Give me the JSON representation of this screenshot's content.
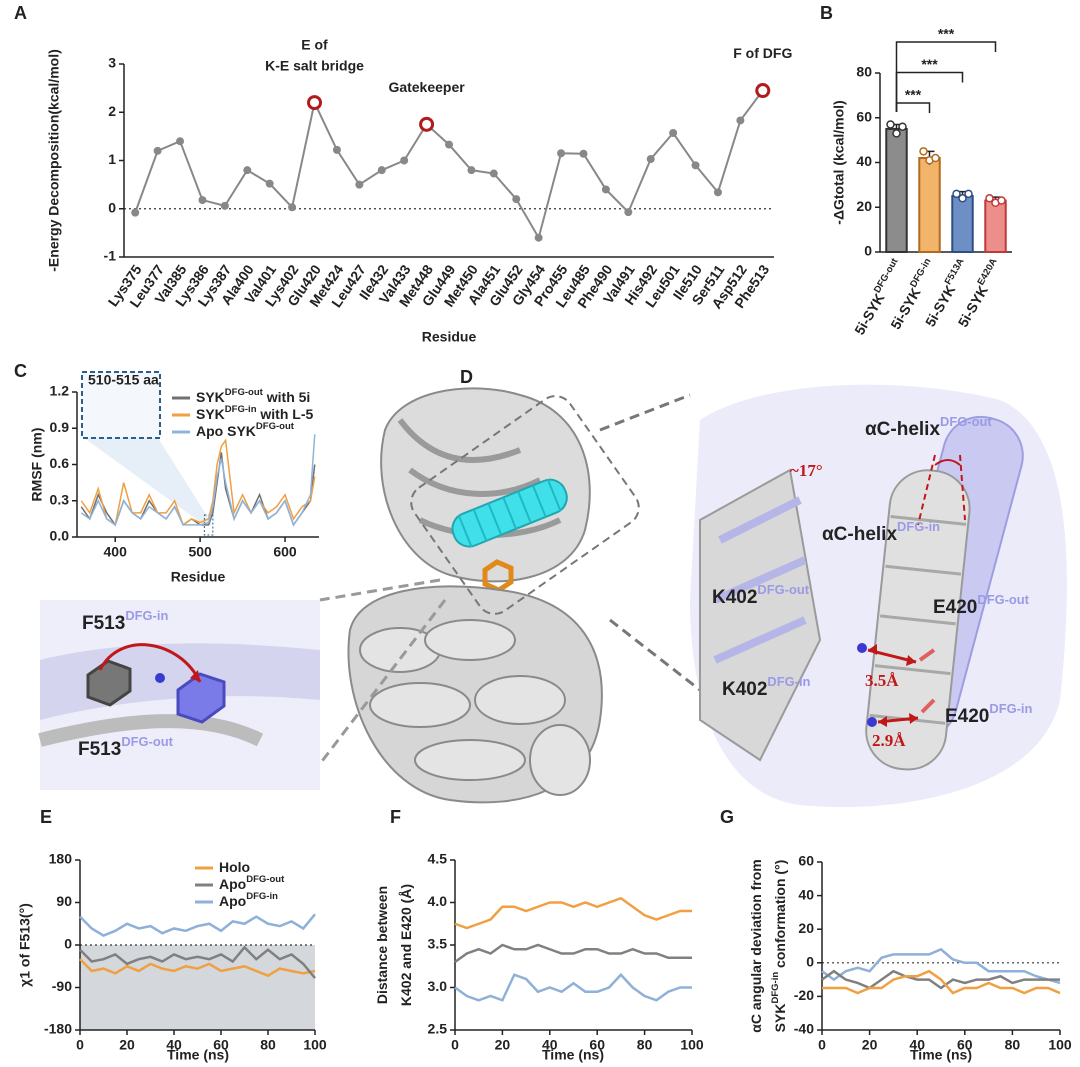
{
  "chart_data": [
    {
      "panel": "A",
      "type": "line",
      "categories": [
        "Lys375",
        "Leu377",
        "Val385",
        "Lys386",
        "Lys387",
        "Ala400",
        "Val401",
        "Lys402",
        "Glu420",
        "Met424",
        "Leu427",
        "Ile432",
        "Val433",
        "Met448",
        "Glu449",
        "Met450",
        "Ala451",
        "Glu452",
        "Gly454",
        "Pro455",
        "Leu485",
        "Phe490",
        "Val491",
        "His492",
        "Leu501",
        "Ile510",
        "Ser511",
        "Asp512",
        "Phe513"
      ],
      "values": [
        -0.08,
        1.2,
        1.4,
        0.18,
        0.06,
        0.8,
        0.52,
        0.03,
        2.2,
        1.22,
        0.5,
        0.8,
        1.0,
        1.75,
        1.33,
        0.8,
        0.73,
        0.2,
        -0.6,
        1.15,
        1.14,
        0.4,
        -0.07,
        1.03,
        1.57,
        0.9,
        0.34,
        1.83,
        2.45
      ],
      "color": "#888888",
      "highlight_color": "#b01c1c",
      "ylim": [
        -1,
        3
      ],
      "yticks": [
        -1,
        0,
        1,
        2,
        3
      ],
      "hline": 0,
      "ylabel": "-Energy Decomposition(kcal/mol)",
      "xlabel": "Residue",
      "annotations": [
        {
          "text": [
            "E of",
            "K-E salt bridge"
          ],
          "category": "Glu420"
        },
        {
          "text": [
            "Gatekeeper"
          ],
          "category": "Met448"
        },
        {
          "text": [
            "F of DFG"
          ],
          "category": "Phe513"
        }
      ]
    },
    {
      "panel": "B",
      "type": "bar",
      "categories": [
        [
          "5i-SYK",
          {
            "sup": "DFG-out"
          }
        ],
        [
          "5i-SYK",
          {
            "sup": "DFG-in"
          }
        ],
        [
          "5i-SYK",
          {
            "sup": "F513A"
          }
        ],
        [
          "5i-SYK",
          {
            "sup": "E420A"
          }
        ]
      ],
      "values": [
        55,
        42,
        25,
        23
      ],
      "errors": [
        2,
        3,
        2,
        1.5
      ],
      "points": [
        [
          57,
          53,
          56
        ],
        [
          45,
          41,
          42
        ],
        [
          26,
          24,
          26
        ],
        [
          24,
          22,
          23
        ]
      ],
      "colors": [
        "#8c8c8c",
        "#f2b36b",
        "#6d8fc4",
        "#ec8f8a"
      ],
      "edge_colors": [
        "#333333",
        "#b46a1e",
        "#2d4e85",
        "#c0393a"
      ],
      "ylim": [
        0,
        80
      ],
      "yticks": [
        0,
        20,
        40,
        60,
        80
      ],
      "ylabel": "-ΔGtotal (kcal/mol)",
      "significance": [
        {
          "from": 0,
          "to": 1,
          "label": "***"
        },
        {
          "from": 0,
          "to": 2,
          "label": "***"
        },
        {
          "from": 0,
          "to": 3,
          "label": "***"
        }
      ]
    },
    {
      "panel": "C",
      "type": "line",
      "x": [
        360,
        370,
        380,
        390,
        400,
        410,
        420,
        430,
        440,
        450,
        460,
        470,
        480,
        490,
        500,
        510,
        515,
        520,
        525,
        530,
        540,
        550,
        560,
        570,
        580,
        590,
        600,
        610,
        620,
        630,
        635
      ],
      "series": [
        {
          "name": [
            "SYK",
            {
              "sup": "DFG-out"
            },
            " with 5i"
          ],
          "color": "#707070",
          "values": [
            0.25,
            0.15,
            0.35,
            0.2,
            0.1,
            0.3,
            0.2,
            0.15,
            0.3,
            0.2,
            0.15,
            0.25,
            0.1,
            0.15,
            0.1,
            0.1,
            0.2,
            0.45,
            0.7,
            0.4,
            0.15,
            0.3,
            0.2,
            0.35,
            0.15,
            0.2,
            0.3,
            0.1,
            0.2,
            0.3,
            0.6
          ]
        },
        {
          "name": [
            "SYK",
            {
              "sup": "DFG-in"
            },
            " with L-5"
          ],
          "color": "#f0a040",
          "values": [
            0.3,
            0.2,
            0.4,
            0.15,
            0.1,
            0.45,
            0.2,
            0.2,
            0.35,
            0.2,
            0.2,
            0.3,
            0.1,
            0.15,
            0.12,
            0.15,
            0.3,
            0.6,
            0.75,
            0.8,
            0.2,
            0.35,
            0.2,
            0.3,
            0.2,
            0.25,
            0.35,
            0.15,
            0.25,
            0.3,
            0.5
          ]
        },
        {
          "name": [
            "Apo SYK",
            {
              "sup": "DFG-out"
            }
          ],
          "color": "#8fb4dc",
          "values": [
            0.2,
            0.15,
            0.3,
            0.15,
            0.1,
            0.3,
            0.2,
            0.15,
            0.25,
            0.2,
            0.15,
            0.25,
            0.1,
            0.1,
            0.1,
            0.12,
            0.25,
            0.5,
            0.65,
            0.45,
            0.15,
            0.3,
            0.2,
            0.3,
            0.15,
            0.2,
            0.3,
            0.1,
            0.2,
            0.35,
            0.85
          ]
        }
      ],
      "xlim": [
        355,
        640
      ],
      "xticks": [
        400,
        500,
        600
      ],
      "ylim": [
        0,
        1.2
      ],
      "yticks": [
        {
          "value": 0,
          "label": "0.0"
        },
        0.3,
        0.6,
        0.9,
        1.2
      ],
      "xlabel": "Residue",
      "ylabel": "RMSF (nm)",
      "inset_label": "510-515 aa"
    },
    {
      "panel": "E",
      "type": "line",
      "x": [
        0,
        5,
        10,
        15,
        20,
        25,
        30,
        35,
        40,
        45,
        50,
        55,
        60,
        65,
        70,
        75,
        80,
        85,
        90,
        95,
        100
      ],
      "series": [
        {
          "name": [
            "Holo"
          ],
          "color": "#f0a040",
          "values": [
            -30,
            -55,
            -50,
            -60,
            -45,
            -55,
            -40,
            -50,
            -55,
            -45,
            -50,
            -40,
            -55,
            -50,
            -45,
            -55,
            -65,
            -50,
            -55,
            -60,
            -55
          ]
        },
        {
          "name": [
            "Apo",
            {
              "sup": "DFG-out"
            }
          ],
          "color": "#808080",
          "values": [
            -10,
            -35,
            -30,
            -20,
            -40,
            -30,
            -25,
            -35,
            -20,
            -30,
            -25,
            -30,
            -20,
            -35,
            -5,
            -30,
            -10,
            -30,
            -20,
            -40,
            -70
          ]
        },
        {
          "name": [
            "Apo",
            {
              "sup": "DFG-in"
            }
          ],
          "color": "#8fb0d8",
          "values": [
            60,
            35,
            20,
            30,
            45,
            35,
            40,
            25,
            35,
            30,
            40,
            45,
            30,
            50,
            45,
            60,
            45,
            40,
            50,
            35,
            65
          ]
        }
      ],
      "xlim": [
        0,
        100
      ],
      "xticks": [
        0,
        20,
        40,
        60,
        80,
        100
      ],
      "ylim": [
        -180,
        180
      ],
      "yticks": [
        -180,
        -90,
        0,
        90,
        180
      ],
      "hline": 0,
      "shade_below": 0,
      "shade_color": "#d4d8dc",
      "xlabel": "Time (ns)",
      "ylabel": "χ1 of F513(°)"
    },
    {
      "panel": "F",
      "type": "line",
      "x": [
        0,
        5,
        10,
        15,
        20,
        25,
        30,
        35,
        40,
        45,
        50,
        55,
        60,
        65,
        70,
        75,
        80,
        85,
        90,
        95,
        100
      ],
      "series": [
        {
          "color": "#f0a040",
          "values": [
            3.75,
            3.7,
            3.75,
            3.8,
            3.95,
            3.95,
            3.9,
            3.95,
            4.0,
            4.0,
            3.95,
            4.0,
            3.95,
            4.0,
            4.05,
            3.95,
            3.85,
            3.8,
            3.85,
            3.9,
            3.9
          ]
        },
        {
          "color": "#808080",
          "values": [
            3.3,
            3.4,
            3.45,
            3.4,
            3.5,
            3.45,
            3.45,
            3.5,
            3.45,
            3.4,
            3.4,
            3.45,
            3.45,
            3.4,
            3.4,
            3.45,
            3.4,
            3.4,
            3.35,
            3.35,
            3.35
          ]
        },
        {
          "color": "#8fb0d8",
          "values": [
            3.0,
            2.9,
            2.85,
            2.9,
            2.85,
            3.15,
            3.1,
            2.95,
            3.0,
            2.95,
            3.05,
            2.95,
            2.95,
            3.0,
            3.15,
            3.0,
            2.9,
            2.85,
            2.95,
            3.0,
            3.0
          ]
        }
      ],
      "xlim": [
        0,
        100
      ],
      "xticks": [
        0,
        20,
        40,
        60,
        80,
        100
      ],
      "ylim": [
        2.5,
        4.5
      ],
      "yticks": [
        2.5,
        {
          "value": 3,
          "label": "3.0"
        },
        3.5,
        {
          "value": 4,
          "label": "4.0"
        },
        4.5
      ],
      "xlabel": "Time (ns)",
      "ylabel": [
        [
          "Distance between"
        ],
        [
          "K402 and E420 (Å)"
        ]
      ]
    },
    {
      "panel": "G",
      "type": "line",
      "x": [
        0,
        5,
        10,
        15,
        20,
        25,
        30,
        35,
        40,
        45,
        50,
        55,
        60,
        65,
        70,
        75,
        80,
        85,
        90,
        95,
        100
      ],
      "series": [
        {
          "color": "#8fb0d8",
          "values": [
            -5,
            -10,
            -5,
            -3,
            -5,
            3,
            5,
            5,
            5,
            5,
            8,
            2,
            0,
            0,
            -5,
            -5,
            -5,
            -5,
            -8,
            -10,
            -12
          ]
        },
        {
          "color": "#808080",
          "values": [
            -10,
            -5,
            -10,
            -12,
            -15,
            -10,
            -5,
            -8,
            -10,
            -10,
            -15,
            -10,
            -12,
            -10,
            -10,
            -8,
            -12,
            -10,
            -10,
            -10,
            -10
          ]
        },
        {
          "color": "#f0a040",
          "values": [
            -15,
            -15,
            -15,
            -18,
            -15,
            -15,
            -10,
            -8,
            -8,
            -5,
            -10,
            -18,
            -15,
            -15,
            -12,
            -15,
            -15,
            -18,
            -15,
            -15,
            -18
          ]
        }
      ],
      "xlim": [
        0,
        100
      ],
      "xticks": [
        0,
        20,
        40,
        60,
        80,
        100
      ],
      "ylim": [
        -40,
        60
      ],
      "yticks": [
        -40,
        -20,
        0,
        20,
        40,
        60
      ],
      "hline": 0,
      "xlabel": "Time (ns)",
      "ylabel": [
        [
          "αC angular deviation from"
        ],
        [
          "SYK",
          {
            "sup": "DFG-in"
          },
          " conformation (°)"
        ]
      ]
    }
  ],
  "panel_d": {
    "panel": "D",
    "labels": [
      [
        "αC-helix",
        {
          "sup": "DFG-out"
        }
      ],
      [
        "~17°"
      ],
      [
        "αC-helix",
        {
          "sup": "DFG-in"
        }
      ],
      [
        "K402",
        {
          "sup": "DFG-out"
        }
      ],
      [
        "E420",
        {
          "sup": "DFG-out"
        }
      ],
      [
        "3.5Å"
      ],
      [
        "K402",
        {
          "sup": "DFG-in"
        }
      ],
      [
        "E420",
        {
          "sup": "DFG-in"
        }
      ],
      [
        "2.9Å"
      ],
      [
        "F513",
        {
          "sup": "DFG-in"
        }
      ],
      [
        "F513",
        {
          "sup": "DFG-out"
        }
      ]
    ]
  }
}
